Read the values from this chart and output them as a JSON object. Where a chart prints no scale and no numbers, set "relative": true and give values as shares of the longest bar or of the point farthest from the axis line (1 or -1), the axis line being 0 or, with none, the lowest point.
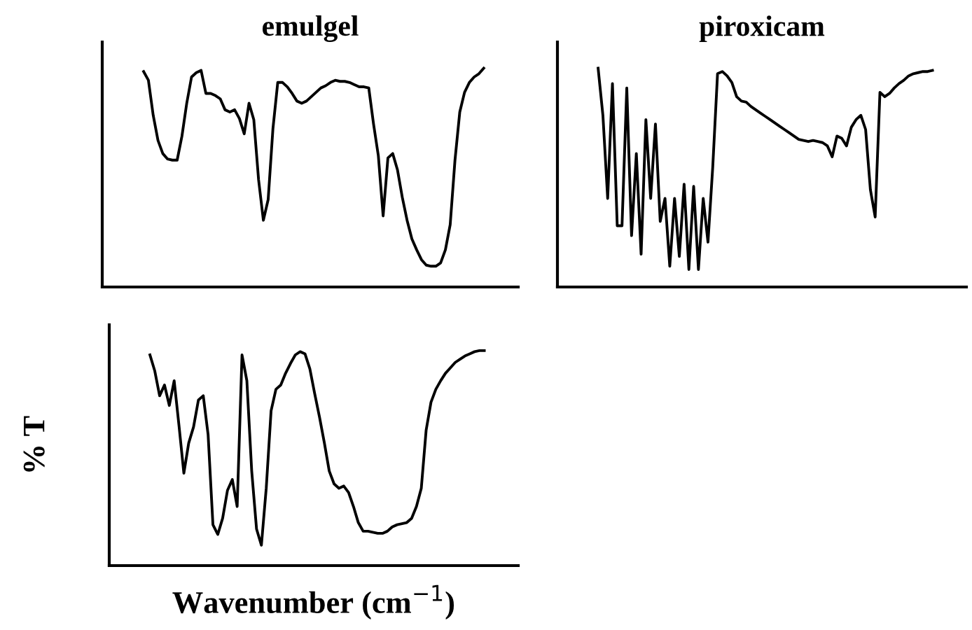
{
  "chart_data": [
    {
      "type": "line",
      "title": "emulgel",
      "relative": true,
      "tick_labels": false,
      "grid": false,
      "categories": [
        null,
        null,
        null,
        null,
        null,
        null,
        null,
        null,
        null,
        null,
        null,
        null,
        null,
        null,
        null,
        null,
        null,
        null,
        null,
        null,
        null,
        null,
        null,
        null,
        null,
        null,
        null,
        null,
        null,
        null,
        null,
        null,
        null,
        null,
        null,
        null,
        null,
        null,
        null,
        null,
        null,
        null,
        null,
        null,
        null,
        null,
        null,
        null,
        null,
        null,
        null,
        null,
        null,
        null,
        null,
        null,
        null,
        null,
        null,
        null,
        null,
        null,
        null,
        null,
        null,
        null,
        null,
        null,
        null,
        null,
        null,
        null
      ],
      "series": [
        {
          "color": "#000000",
          "values": [
            0.985,
            0.945,
            0.785,
            0.67,
            0.61,
            0.585,
            0.58,
            0.58,
            0.69,
            0.84,
            0.96,
            0.98,
            0.99,
            0.885,
            0.885,
            0.875,
            0.86,
            0.81,
            0.8,
            0.81,
            0.77,
            0.7,
            0.84,
            0.765,
            0.49,
            0.305,
            0.4,
            0.725,
            0.935,
            0.935,
            0.915,
            0.885,
            0.85,
            0.84,
            0.85,
            0.87,
            0.89,
            0.91,
            0.92,
            0.935,
            0.945,
            0.94,
            0.94,
            0.935,
            0.925,
            0.915,
            0.915,
            0.91,
            0.745,
            0.6,
            0.325,
            0.59,
            0.61,
            0.535,
            0.41,
            0.305,
            0.22,
            0.17,
            0.125,
            0.1,
            0.095,
            0.095,
            0.11,
            0.17,
            0.285,
            0.58,
            0.8,
            0.89,
            0.935,
            0.96,
            0.975,
            1
          ]
        }
      ]
    },
    {
      "type": "line",
      "title": "piroxicam",
      "relative": true,
      "tick_labels": false,
      "grid": false,
      "categories": [
        null,
        null,
        null,
        null,
        null,
        null,
        null,
        null,
        null,
        null,
        null,
        null,
        null,
        null,
        null,
        null,
        null,
        null,
        null,
        null,
        null,
        null,
        null,
        null,
        null,
        null,
        null,
        null,
        null,
        null,
        null,
        null,
        null,
        null,
        null,
        null,
        null,
        null,
        null,
        null,
        null,
        null,
        null,
        null,
        null,
        null,
        null,
        null,
        null,
        null,
        null,
        null,
        null,
        null,
        null,
        null,
        null,
        null,
        null,
        null,
        null,
        null,
        null,
        null,
        null,
        null,
        null,
        null,
        null,
        null,
        null
      ],
      "series": [
        {
          "color": "#000000",
          "values": [
            1,
            0.785,
            0.405,
            0.93,
            0.28,
            0.28,
            0.91,
            0.235,
            0.61,
            0.15,
            0.765,
            0.405,
            0.745,
            0.3,
            0.405,
            0.095,
            0.405,
            0.14,
            0.47,
            0.08,
            0.46,
            0.08,
            0.405,
            0.205,
            0.55,
            0.975,
            0.985,
            0.965,
            0.935,
            0.87,
            0.85,
            0.845,
            0.825,
            0.81,
            0.795,
            0.78,
            0.765,
            0.75,
            0.735,
            0.72,
            0.705,
            0.69,
            0.675,
            0.67,
            0.665,
            0.67,
            0.665,
            0.66,
            0.645,
            0.595,
            0.69,
            0.68,
            0.645,
            0.73,
            0.765,
            0.785,
            0.72,
            0.445,
            0.32,
            0.89,
            0.87,
            0.885,
            0.91,
            0.93,
            0.945,
            0.965,
            0.975,
            0.98,
            0.985,
            0.985,
            0.99
          ]
        }
      ]
    },
    {
      "type": "line",
      "relative": true,
      "tick_labels": false,
      "grid": false,
      "xlabel": "Wavenumber (cm$^{−1}$)",
      "ylabel": "% T",
      "categories": [
        null,
        null,
        null,
        null,
        null,
        null,
        null,
        null,
        null,
        null,
        null,
        null,
        null,
        null,
        null,
        null,
        null,
        null,
        null,
        null,
        null,
        null,
        null,
        null,
        null,
        null,
        null,
        null,
        null,
        null,
        null,
        null,
        null,
        null,
        null,
        null,
        null,
        null,
        null,
        null,
        null,
        null,
        null,
        null,
        null,
        null,
        null,
        null,
        null,
        null,
        null,
        null,
        null,
        null,
        null,
        null,
        null,
        null,
        null,
        null,
        null,
        null,
        null,
        null,
        null,
        null,
        null,
        null,
        null,
        null
      ],
      "series": [
        {
          "color": "#000000",
          "values": [
            0.98,
            0.905,
            0.79,
            0.84,
            0.745,
            0.86,
            0.65,
            0.43,
            0.57,
            0.645,
            0.77,
            0.79,
            0.61,
            0.19,
            0.145,
            0.22,
            0.35,
            0.4,
            0.275,
            0.98,
            0.86,
            0.44,
            0.17,
            0.095,
            0.36,
            0.72,
            0.82,
            0.84,
            0.895,
            0.94,
            0.98,
            0.995,
            0.985,
            0.915,
            0.8,
            0.69,
            0.57,
            0.44,
            0.38,
            0.36,
            0.37,
            0.34,
            0.275,
            0.2,
            0.16,
            0.16,
            0.155,
            0.15,
            0.15,
            0.16,
            0.18,
            0.19,
            0.195,
            0.2,
            0.22,
            0.275,
            0.36,
            0.63,
            0.76,
            0.82,
            0.86,
            0.895,
            0.92,
            0.945,
            0.96,
            0.975,
            0.985,
            0.995,
            1,
            1
          ]
        }
      ]
    }
  ]
}
